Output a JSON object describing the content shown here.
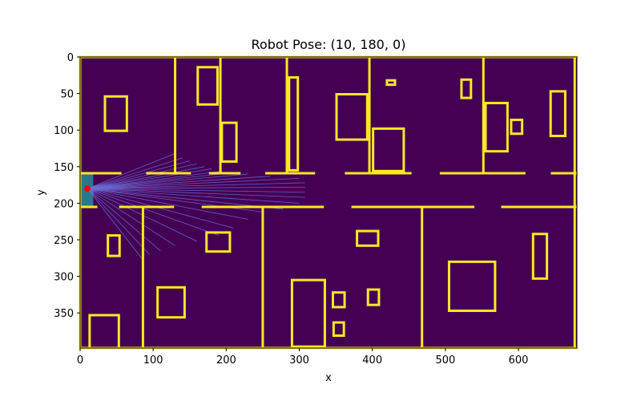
{
  "chart_data": {
    "type": "map",
    "title": "Robot Pose: (10, 180,  0)",
    "xlabel": "x",
    "ylabel": "y",
    "xlim": [
      0,
      680
    ],
    "ylim": [
      398,
      0
    ],
    "x_ticks": [
      0,
      100,
      200,
      300,
      400,
      500,
      600
    ],
    "y_ticks": [
      0,
      50,
      100,
      150,
      200,
      250,
      300,
      350
    ],
    "colors": {
      "background": "#440154",
      "walls": "#fde725",
      "lidar_area": "#2a788e",
      "rays": "#6d6fd6",
      "robot": "#ff0000"
    },
    "robot": {
      "x": 10,
      "y": 180,
      "theta": 0
    },
    "lidar": {
      "origin": [
        10,
        180
      ],
      "ray_ends": [
        [
          130,
          132
        ],
        [
          140,
          138
        ],
        [
          150,
          142
        ],
        [
          160,
          146
        ],
        [
          170,
          150
        ],
        [
          180,
          153
        ],
        [
          195,
          156
        ],
        [
          210,
          158
        ],
        [
          230,
          160
        ],
        [
          260,
          163
        ],
        [
          300,
          166
        ],
        [
          308,
          172
        ],
        [
          308,
          178
        ],
        [
          308,
          185
        ],
        [
          308,
          192
        ],
        [
          300,
          200
        ],
        [
          278,
          208
        ],
        [
          250,
          212
        ],
        [
          230,
          222
        ],
        [
          210,
          234
        ],
        [
          190,
          244
        ],
        [
          160,
          252
        ],
        [
          130,
          258
        ],
        [
          110,
          265
        ],
        [
          95,
          270
        ],
        [
          85,
          276
        ]
      ]
    },
    "walls": [
      {
        "x1": 0,
        "y1": 0,
        "x2": 680,
        "y2": 0
      },
      {
        "x1": 0,
        "y1": 398,
        "x2": 680,
        "y2": 398
      },
      {
        "x1": 0,
        "y1": 0,
        "x2": 0,
        "y2": 398
      },
      {
        "x1": 677,
        "y1": 0,
        "x2": 677,
        "y2": 398
      },
      {
        "x1": 0,
        "y1": 159,
        "x2": 55,
        "y2": 159
      },
      {
        "x1": 92,
        "y1": 159,
        "x2": 150,
        "y2": 159
      },
      {
        "x1": 178,
        "y1": 159,
        "x2": 218,
        "y2": 159
      },
      {
        "x1": 255,
        "y1": 159,
        "x2": 320,
        "y2": 159
      },
      {
        "x1": 364,
        "y1": 159,
        "x2": 452,
        "y2": 159
      },
      {
        "x1": 494,
        "y1": 159,
        "x2": 608,
        "y2": 159
      },
      {
        "x1": 646,
        "y1": 159,
        "x2": 680,
        "y2": 159
      },
      {
        "x1": 0,
        "y1": 205,
        "x2": 22,
        "y2": 205
      },
      {
        "x1": 55,
        "y1": 205,
        "x2": 127,
        "y2": 205
      },
      {
        "x1": 168,
        "y1": 205,
        "x2": 332,
        "y2": 205
      },
      {
        "x1": 373,
        "y1": 205,
        "x2": 538,
        "y2": 205
      },
      {
        "x1": 578,
        "y1": 205,
        "x2": 680,
        "y2": 205
      },
      {
        "x1": 130,
        "y1": 0,
        "x2": 130,
        "y2": 159
      },
      {
        "x1": 192,
        "y1": 0,
        "x2": 192,
        "y2": 159
      },
      {
        "x1": 283,
        "y1": 0,
        "x2": 283,
        "y2": 159
      },
      {
        "x1": 396,
        "y1": 0,
        "x2": 396,
        "y2": 159
      },
      {
        "x1": 552,
        "y1": 0,
        "x2": 552,
        "y2": 159
      },
      {
        "x1": 86,
        "y1": 205,
        "x2": 86,
        "y2": 398
      },
      {
        "x1": 250,
        "y1": 205,
        "x2": 250,
        "y2": 398
      },
      {
        "x1": 468,
        "y1": 205,
        "x2": 468,
        "y2": 398
      }
    ],
    "obstacles": [
      {
        "x": 34,
        "y": 54,
        "w": 30,
        "h": 47
      },
      {
        "x": 161,
        "y": 14,
        "w": 27,
        "h": 51
      },
      {
        "x": 194,
        "y": 90,
        "w": 20,
        "h": 53
      },
      {
        "x": 286,
        "y": 28,
        "w": 12,
        "h": 127
      },
      {
        "x": 351,
        "y": 51,
        "w": 42,
        "h": 62
      },
      {
        "x": 420,
        "y": 32,
        "w": 11,
        "h": 6
      },
      {
        "x": 401,
        "y": 98,
        "w": 42,
        "h": 58
      },
      {
        "x": 522,
        "y": 31,
        "w": 13,
        "h": 25
      },
      {
        "x": 555,
        "y": 63,
        "w": 30,
        "h": 66
      },
      {
        "x": 590,
        "y": 86,
        "w": 15,
        "h": 19
      },
      {
        "x": 644,
        "y": 47,
        "w": 20,
        "h": 61
      },
      {
        "x": 38,
        "y": 244,
        "w": 16,
        "h": 28
      },
      {
        "x": 173,
        "y": 240,
        "w": 32,
        "h": 26
      },
      {
        "x": 379,
        "y": 238,
        "w": 29,
        "h": 20
      },
      {
        "x": 106,
        "y": 315,
        "w": 37,
        "h": 41
      },
      {
        "x": 290,
        "y": 305,
        "w": 45,
        "h": 91
      },
      {
        "x": 346,
        "y": 322,
        "w": 16,
        "h": 20
      },
      {
        "x": 394,
        "y": 318,
        "w": 15,
        "h": 21
      },
      {
        "x": 347,
        "y": 363,
        "w": 14,
        "h": 18
      },
      {
        "x": 505,
        "y": 280,
        "w": 63,
        "h": 67
      },
      {
        "x": 620,
        "y": 242,
        "w": 19,
        "h": 61
      },
      {
        "x": 13,
        "y": 353,
        "w": 40,
        "h": 45
      }
    ]
  }
}
